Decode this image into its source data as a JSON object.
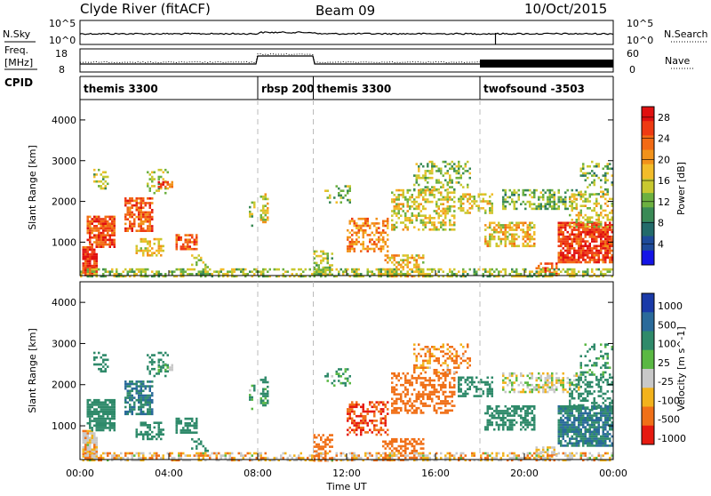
{
  "header": {
    "station": "Clyde River (fitACF)",
    "beam": "Beam 09",
    "date": "10/Oct/2015"
  },
  "summary_panel": {
    "nsky_label": "N.Sky",
    "nsearch_label": "N.Search",
    "noise_ticks": [
      "10^5",
      "10^0"
    ],
    "freq_label_1": "Freq.",
    "freq_label_2": "[MHz]",
    "nave_label": "Nave",
    "freq_ticks": [
      "18",
      "8"
    ],
    "nave_ticks": [
      "60",
      "0"
    ],
    "cpid_label": "CPID",
    "cpid_segments": [
      {
        "name": "themis 3300",
        "start": 0,
        "end": 8.0
      },
      {
        "name": "rbsp 200",
        "start": 8.0,
        "end": 10.5
      },
      {
        "name": "themis 3300",
        "start": 10.5,
        "end": 18.0
      },
      {
        "name": "twofsound -3503",
        "start": 18.0,
        "end": 24.0
      }
    ]
  },
  "axes": {
    "y_label": "Slant Range [km]",
    "y_ticks": [
      "4000",
      "3000",
      "2000",
      "1000"
    ],
    "x_label": "Time UT",
    "x_ticks": [
      "00:00",
      "04:00",
      "08:00",
      "12:00",
      "16:00",
      "20:00",
      "00:00"
    ]
  },
  "power_colorbar": {
    "label": "Power [dB]",
    "ticks": [
      "28",
      "24",
      "20",
      "16",
      "12",
      "8",
      "4"
    ],
    "colors": [
      "#e01010",
      "#ee3a12",
      "#f26a14",
      "#f2921a",
      "#f2bc2a",
      "#c8c830",
      "#6cb040",
      "#3a8a56",
      "#226a6a",
      "#1e4a9a",
      "#1414e6"
    ]
  },
  "velocity_colorbar": {
    "label": "Velocity [m s^-1]",
    "ticks": [
      "1000",
      "500",
      "100",
      "25",
      "-25",
      "-100",
      "-500",
      "-1000"
    ],
    "colors": [
      "#1a3aa8",
      "#2a6a9a",
      "#2f8a6a",
      "#5ab843",
      "#c8c8c8",
      "#f2b21c",
      "#f07018",
      "#e61a10"
    ]
  },
  "chart_data": {
    "type": "heatmap",
    "x_range_hours": [
      0,
      24
    ],
    "y_range_km": [
      180,
      4500
    ],
    "segment_boundaries_hours": [
      8.0,
      10.5,
      18.0
    ],
    "nsearch_spike_hour": 18.7,
    "echo_regions": [
      {
        "t0": 0.1,
        "t1": 0.8,
        "r0": 180,
        "r1": 900,
        "pw": 27,
        "vel": -30,
        "d": 0.85
      },
      {
        "t0": 0.3,
        "t1": 1.6,
        "r0": 900,
        "r1": 1650,
        "pw": 26,
        "vel": 200,
        "d": 0.8
      },
      {
        "t0": 0.6,
        "t1": 1.3,
        "r0": 2300,
        "r1": 2800,
        "pw": 14,
        "vel": 120,
        "d": 0.25
      },
      {
        "t0": 2.0,
        "t1": 3.3,
        "r0": 1300,
        "r1": 2100,
        "pw": 25,
        "vel": 300,
        "d": 0.75
      },
      {
        "t0": 2.5,
        "t1": 3.8,
        "r0": 700,
        "r1": 1100,
        "pw": 18,
        "vel": 150,
        "d": 0.5
      },
      {
        "t0": 3.0,
        "t1": 4.0,
        "r0": 2200,
        "r1": 2800,
        "pw": 14,
        "vel": 100,
        "d": 0.3
      },
      {
        "t0": 3.5,
        "t1": 4.2,
        "r0": 2350,
        "r1": 2500,
        "pw": 26,
        "vel": 50,
        "d": 0.6
      },
      {
        "t0": 4.3,
        "t1": 5.3,
        "r0": 850,
        "r1": 1200,
        "pw": 25,
        "vel": 200,
        "d": 0.55
      },
      {
        "t0": 5.0,
        "t1": 5.8,
        "r0": 400,
        "r1": 700,
        "pw": 16,
        "vel": 120,
        "d": 0.3
      },
      {
        "t0": 7.6,
        "t1": 7.9,
        "r0": 1400,
        "r1": 2000,
        "pw": 14,
        "vel": 80,
        "d": 0.4
      },
      {
        "t0": 8.1,
        "t1": 8.5,
        "r0": 1500,
        "r1": 2200,
        "pw": 16,
        "vel": 100,
        "d": 0.5
      },
      {
        "t0": 10.5,
        "t1": 11.4,
        "r0": 180,
        "r1": 800,
        "pw": 14,
        "vel": -150,
        "d": 0.55
      },
      {
        "t0": 11.0,
        "t1": 12.2,
        "r0": 2000,
        "r1": 2400,
        "pw": 13,
        "vel": 80,
        "d": 0.3
      },
      {
        "t0": 12.0,
        "t1": 13.8,
        "r0": 800,
        "r1": 1600,
        "pw": 22,
        "vel": -300,
        "d": 0.5
      },
      {
        "t0": 13.5,
        "t1": 15.4,
        "r0": 180,
        "r1": 700,
        "pw": 18,
        "vel": -120,
        "d": 0.55
      },
      {
        "t0": 14.0,
        "t1": 16.8,
        "r0": 1300,
        "r1": 2300,
        "pw": 16,
        "vel": -200,
        "d": 0.5
      },
      {
        "t0": 15.0,
        "t1": 17.6,
        "r0": 2300,
        "r1": 3000,
        "pw": 13,
        "vel": -80,
        "d": 0.35
      },
      {
        "t0": 17.0,
        "t1": 18.6,
        "r0": 1700,
        "r1": 2200,
        "pw": 16,
        "vel": 120,
        "d": 0.5
      },
      {
        "t0": 18.2,
        "t1": 20.5,
        "r0": 900,
        "r1": 1500,
        "pw": 18,
        "vel": 200,
        "d": 0.6
      },
      {
        "t0": 19.0,
        "t1": 22.5,
        "r0": 1800,
        "r1": 2300,
        "pw": 12,
        "vel": 0,
        "d": 0.45
      },
      {
        "t0": 20.5,
        "t1": 21.5,
        "r0": 180,
        "r1": 500,
        "pw": 26,
        "vel": -20,
        "d": 0.45
      },
      {
        "t0": 21.5,
        "t1": 24.0,
        "r0": 500,
        "r1": 1500,
        "pw": 27,
        "vel": 300,
        "d": 0.8
      },
      {
        "t0": 22.0,
        "t1": 24.0,
        "r0": 1400,
        "r1": 2200,
        "pw": 16,
        "vel": 150,
        "d": 0.45
      },
      {
        "t0": 22.5,
        "t1": 24.0,
        "r0": 2200,
        "r1": 3000,
        "pw": 12,
        "vel": 100,
        "d": 0.3
      },
      {
        "t0": 0.0,
        "t1": 24.0,
        "r0": 180,
        "r1": 360,
        "pw": 14,
        "vel": -30,
        "d": 0.5
      }
    ]
  }
}
